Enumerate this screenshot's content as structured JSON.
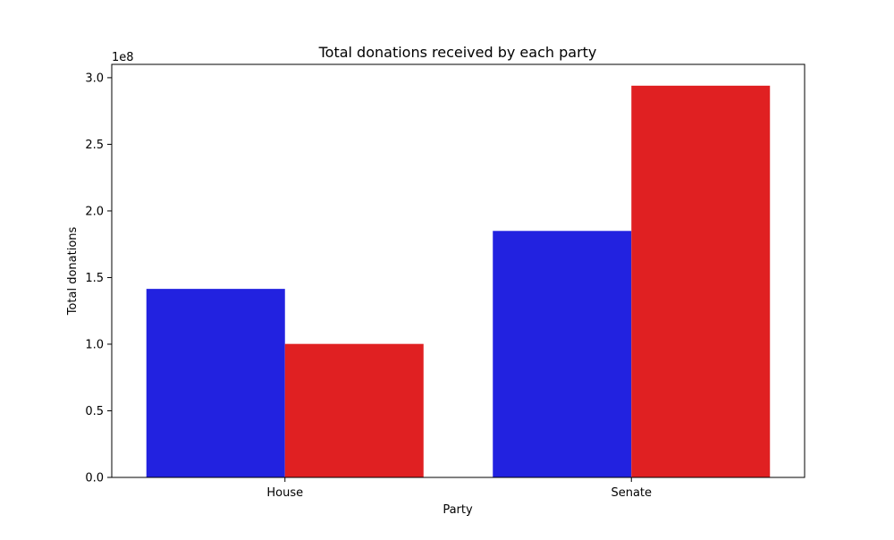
{
  "chart_data": {
    "type": "bar",
    "title": "Total donations received by each party",
    "xlabel": "Party",
    "ylabel": "Total donations",
    "y_scale_label": "1e8",
    "categories": [
      "House",
      "Senate"
    ],
    "series": [
      {
        "values": [
          141500000,
          185000000
        ],
        "color": "#2222e0"
      },
      {
        "values": [
          100200000,
          294000000
        ],
        "color": "#e02022"
      }
    ],
    "ylim": [
      0,
      310000000
    ],
    "yticks": [
      0,
      50000000,
      100000000,
      150000000,
      200000000,
      250000000,
      300000000
    ],
    "ytick_labels": [
      "0.0",
      "0.5",
      "1.0",
      "1.5",
      "2.0",
      "2.5",
      "3.0"
    ],
    "grid": false,
    "legend": "none"
  }
}
